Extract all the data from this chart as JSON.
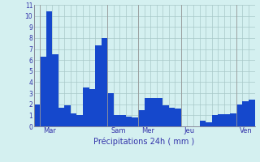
{
  "values": [
    2,
    6.3,
    10.4,
    6.5,
    1.7,
    1.9,
    1.2,
    1.0,
    3.5,
    3.4,
    7.3,
    8.0,
    3.0,
    1.0,
    1.0,
    0.9,
    0.8,
    1.5,
    2.6,
    2.6,
    2.6,
    1.9,
    1.7,
    1.6,
    0.0,
    0.0,
    0.0,
    0.5,
    0.4,
    1.0,
    1.1,
    1.1,
    1.2,
    2.0,
    2.3,
    2.4
  ],
  "day_labels": [
    "Mar",
    "Sam",
    "Mer",
    "Jeu",
    "Ven"
  ],
  "day_tick_positions": [
    1,
    12,
    17,
    24,
    33
  ],
  "day_line_positions": [
    0.5,
    11.5,
    16.5,
    23.5,
    32.5
  ],
  "xlabel": "Précipitations 24h ( mm )",
  "yticks": [
    0,
    1,
    2,
    3,
    4,
    5,
    6,
    7,
    8,
    9,
    10,
    11
  ],
  "bar_color": "#1548cc",
  "bg_color": "#d4f0f0",
  "grid_color": "#a8c8c8",
  "text_color": "#3333aa"
}
